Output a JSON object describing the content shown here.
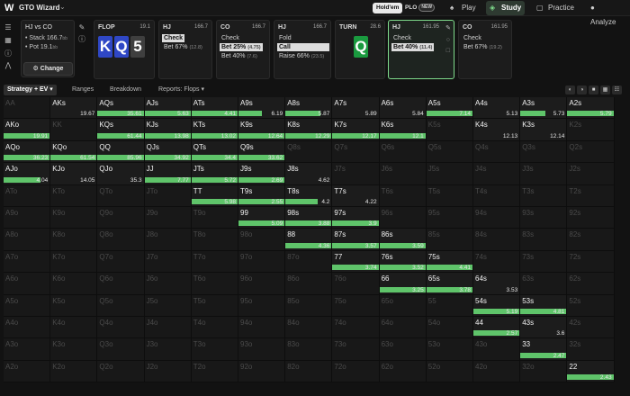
{
  "header": {
    "logo": "W",
    "app_title": "GTO Wizard",
    "game_holdem": "Hold'em",
    "game_plo": "PLO",
    "new_badge": "NEW",
    "nav": [
      {
        "label": "Play",
        "icon": "play-icon"
      },
      {
        "label": "Study",
        "icon": "study-icon"
      },
      {
        "label": "Practice",
        "icon": "gamepad-icon"
      },
      {
        "label": "Analyze",
        "icon": "analyze-icon"
      }
    ]
  },
  "spot": {
    "matchup": "HJ vs CO",
    "stack_label": "Stack 166.7",
    "pot_label": "Pot 19.1",
    "unit": "bb",
    "change_label": "Change"
  },
  "streets": [
    {
      "key": "flop",
      "header": "FLOP",
      "value": "19.1",
      "cards": [
        "K",
        "Q",
        "5"
      ]
    },
    {
      "key": "hj1",
      "header": "HJ",
      "value": "166.7",
      "actions": [
        {
          "label": "Check",
          "sub": "",
          "selected": true
        },
        {
          "label": "Bet 67%",
          "sub": "(12.8)",
          "selected": false
        }
      ]
    },
    {
      "key": "co1",
      "header": "CO",
      "value": "166.7",
      "actions": [
        {
          "label": "Check",
          "sub": "",
          "selected": false
        },
        {
          "label": "Bet 25%",
          "sub": "(4.75)",
          "selected": true
        },
        {
          "label": "Bet 40%",
          "sub": "(7.6)",
          "selected": false
        }
      ]
    },
    {
      "key": "hj2",
      "header": "HJ",
      "value": "166.7",
      "actions": [
        {
          "label": "Fold",
          "sub": "",
          "selected": false
        },
        {
          "label": "Call",
          "sub": "",
          "selected": true
        },
        {
          "label": "Raise 66%",
          "sub": "(23.5)",
          "selected": false
        }
      ]
    },
    {
      "key": "turn",
      "header": "TURN",
      "value": "28.6",
      "cards": [
        "Q"
      ]
    },
    {
      "key": "hj3",
      "header": "HJ",
      "value": "161.95",
      "actions": [
        {
          "label": "Check",
          "sub": "",
          "selected": false
        },
        {
          "label": "Bet 40%",
          "sub": "(11.4)",
          "selected": true
        }
      ]
    },
    {
      "key": "co2",
      "header": "CO",
      "value": "161.95",
      "actions": [
        {
          "label": "Check",
          "sub": "",
          "selected": false
        },
        {
          "label": "Bet 67%",
          "sub": "(19.2)",
          "selected": false
        }
      ]
    }
  ],
  "toolbar": {
    "strategy_tab": "Strategy + EV",
    "ranges_tab": "Ranges",
    "breakdown_tab": "Breakdown",
    "reports_tab": "Reports: Flops"
  },
  "colors": {
    "bar": "#5fc46a",
    "active_border": "#7fdc8c",
    "card_blue": "#2f47c5",
    "card_green": "#1a9a3f"
  },
  "grid": {
    "ranks": [
      "A",
      "K",
      "Q",
      "J",
      "T",
      "9",
      "8",
      "7",
      "6",
      "5",
      "4",
      "3",
      "2"
    ],
    "cells": [
      [
        {
          "h": "AA"
        },
        {
          "h": "AKs",
          "ev": "19.67",
          "f": 0
        },
        {
          "h": "AQs",
          "ev": "35.61",
          "f": 1
        },
        {
          "h": "AJs",
          "ev": "5.63",
          "f": 1
        },
        {
          "h": "ATs",
          "ev": "4.41",
          "f": 1
        },
        {
          "h": "A9s",
          "ev": "6.19",
          "f": 0.5
        },
        {
          "h": "A8s",
          "ev": "5.87",
          "f": 0.75
        },
        {
          "h": "A7s",
          "ev": "5.89",
          "f": 0
        },
        {
          "h": "A6s",
          "ev": "5.84",
          "f": 0
        },
        {
          "h": "A5s",
          "ev": "7.14",
          "f": 1
        },
        {
          "h": "A4s",
          "ev": "5.13",
          "f": 0
        },
        {
          "h": "A3s",
          "ev": "5.73",
          "f": 0.55
        },
        {
          "h": "A2s",
          "ev": "5.79",
          "f": 1
        }
      ],
      [
        {
          "h": "AKo",
          "ev": "19.91",
          "f": 1
        },
        {
          "h": "KK"
        },
        {
          "h": "KQs",
          "ev": "61.44",
          "f": 1
        },
        {
          "h": "KJs",
          "ev": "13.98",
          "f": 1
        },
        {
          "h": "KTs",
          "ev": "13.02",
          "f": 1
        },
        {
          "h": "K9s",
          "ev": "12.64",
          "f": 1
        },
        {
          "h": "K8s",
          "ev": "12.29",
          "f": 1
        },
        {
          "h": "K7s",
          "ev": "12.17",
          "f": 1
        },
        {
          "h": "K6s",
          "ev": "12.1",
          "f": 1
        },
        {
          "h": "K5s"
        },
        {
          "h": "K4s",
          "ev": "12.13",
          "f": 0
        },
        {
          "h": "K3s",
          "ev": "12.14",
          "f": 0
        },
        {
          "h": "K2s"
        }
      ],
      [
        {
          "h": "AQo",
          "ev": "36.23",
          "f": 1
        },
        {
          "h": "KQo",
          "ev": "61.54",
          "f": 1
        },
        {
          "h": "QQ",
          "ev": "85.96",
          "f": 1
        },
        {
          "h": "QJs",
          "ev": "34.92",
          "f": 1
        },
        {
          "h": "QTs",
          "ev": "34.4",
          "f": 1
        },
        {
          "h": "Q9s",
          "ev": "33.62",
          "f": 1
        },
        {
          "h": "Q8s"
        },
        {
          "h": "Q7s"
        },
        {
          "h": "Q6s"
        },
        {
          "h": "Q5s"
        },
        {
          "h": "Q4s"
        },
        {
          "h": "Q3s"
        },
        {
          "h": "Q2s"
        }
      ],
      [
        {
          "h": "AJo",
          "ev": "4.04",
          "f": 0.8
        },
        {
          "h": "KJo",
          "ev": "14.05",
          "f": 0
        },
        {
          "h": "QJo",
          "ev": "35.3",
          "f": 0
        },
        {
          "h": "JJ",
          "ev": "7.77",
          "f": 1
        },
        {
          "h": "JTs",
          "ev": "5.72",
          "f": 1
        },
        {
          "h": "J9s",
          "ev": "2.69",
          "f": 1
        },
        {
          "h": "J8s",
          "ev": "4.62",
          "f": 0
        },
        {
          "h": "J7s"
        },
        {
          "h": "J6s"
        },
        {
          "h": "J5s"
        },
        {
          "h": "J4s"
        },
        {
          "h": "J3s"
        },
        {
          "h": "J2s"
        }
      ],
      [
        {
          "h": "ATo"
        },
        {
          "h": "KTo"
        },
        {
          "h": "QTo"
        },
        {
          "h": "JTo"
        },
        {
          "h": "TT",
          "ev": "5.98",
          "f": 1
        },
        {
          "h": "T9s",
          "ev": "2.55",
          "f": 1
        },
        {
          "h": "T8s",
          "ev": "4.2",
          "f": 0.7
        },
        {
          "h": "T7s",
          "ev": "4.22",
          "f": 0
        },
        {
          "h": "T6s"
        },
        {
          "h": "T5s"
        },
        {
          "h": "T4s"
        },
        {
          "h": "T3s"
        },
        {
          "h": "T2s"
        }
      ],
      [
        {
          "h": "A9o"
        },
        {
          "h": "K9o"
        },
        {
          "h": "Q9o"
        },
        {
          "h": "J9o"
        },
        {
          "h": "T9o"
        },
        {
          "h": "99",
          "ev": "5.09",
          "f": 1
        },
        {
          "h": "98s",
          "ev": "3.88",
          "f": 1
        },
        {
          "h": "97s",
          "ev": "3.9",
          "f": 1
        },
        {
          "h": "96s"
        },
        {
          "h": "95s"
        },
        {
          "h": "94s"
        },
        {
          "h": "93s"
        },
        {
          "h": "92s"
        }
      ],
      [
        {
          "h": "A8o"
        },
        {
          "h": "K8o"
        },
        {
          "h": "Q8o"
        },
        {
          "h": "J8o"
        },
        {
          "h": "T8o"
        },
        {
          "h": "98o"
        },
        {
          "h": "88",
          "ev": "4.36",
          "f": 1
        },
        {
          "h": "87s",
          "ev": "3.57",
          "f": 1
        },
        {
          "h": "86s",
          "ev": "3.59",
          "f": 1
        },
        {
          "h": "85s"
        },
        {
          "h": "84s"
        },
        {
          "h": "83s"
        },
        {
          "h": "82s"
        }
      ],
      [
        {
          "h": "A7o"
        },
        {
          "h": "K7o"
        },
        {
          "h": "Q7o"
        },
        {
          "h": "J7o"
        },
        {
          "h": "T7o"
        },
        {
          "h": "97o"
        },
        {
          "h": "87o"
        },
        {
          "h": "77",
          "ev": "3.74",
          "f": 1
        },
        {
          "h": "76s",
          "ev": "3.52",
          "f": 1
        },
        {
          "h": "75s",
          "ev": "4.41",
          "f": 1
        },
        {
          "h": "74s"
        },
        {
          "h": "73s"
        },
        {
          "h": "72s"
        }
      ],
      [
        {
          "h": "A6o"
        },
        {
          "h": "K6o"
        },
        {
          "h": "Q6o"
        },
        {
          "h": "J6o"
        },
        {
          "h": "T6o"
        },
        {
          "h": "96o"
        },
        {
          "h": "86o"
        },
        {
          "h": "76o"
        },
        {
          "h": "66",
          "ev": "3.25",
          "f": 1
        },
        {
          "h": "65s",
          "ev": "3.78",
          "f": 1
        },
        {
          "h": "64s",
          "ev": "3.53",
          "f": 0
        },
        {
          "h": "63s"
        },
        {
          "h": "62s"
        }
      ],
      [
        {
          "h": "A5o"
        },
        {
          "h": "K5o"
        },
        {
          "h": "Q5o"
        },
        {
          "h": "J5o"
        },
        {
          "h": "T5o"
        },
        {
          "h": "95o"
        },
        {
          "h": "85o"
        },
        {
          "h": "75o"
        },
        {
          "h": "65o"
        },
        {
          "h": "55"
        },
        {
          "h": "54s",
          "ev": "5.19",
          "f": 1
        },
        {
          "h": "53s",
          "ev": "4.81",
          "f": 1
        },
        {
          "h": "52s"
        }
      ],
      [
        {
          "h": "A4o"
        },
        {
          "h": "K4o"
        },
        {
          "h": "Q4o"
        },
        {
          "h": "J4o"
        },
        {
          "h": "T4o"
        },
        {
          "h": "94o"
        },
        {
          "h": "84o"
        },
        {
          "h": "74o"
        },
        {
          "h": "64o"
        },
        {
          "h": "54o"
        },
        {
          "h": "44",
          "ev": "2.57",
          "f": 1
        },
        {
          "h": "43s",
          "ev": "3.6",
          "f": 0
        },
        {
          "h": "42s"
        }
      ],
      [
        {
          "h": "A3o"
        },
        {
          "h": "K3o"
        },
        {
          "h": "Q3o"
        },
        {
          "h": "J3o"
        },
        {
          "h": "T3o"
        },
        {
          "h": "93o"
        },
        {
          "h": "83o"
        },
        {
          "h": "73o"
        },
        {
          "h": "63o"
        },
        {
          "h": "53o"
        },
        {
          "h": "43o"
        },
        {
          "h": "33",
          "ev": "2.47",
          "f": 1
        },
        {
          "h": "32s"
        }
      ],
      [
        {
          "h": "A2o"
        },
        {
          "h": "K2o"
        },
        {
          "h": "Q2o"
        },
        {
          "h": "J2o"
        },
        {
          "h": "T2o"
        },
        {
          "h": "92o"
        },
        {
          "h": "82o"
        },
        {
          "h": "72o"
        },
        {
          "h": "62o"
        },
        {
          "h": "52o"
        },
        {
          "h": "42o"
        },
        {
          "h": "32o"
        },
        {
          "h": "22",
          "ev": "2.43",
          "f": 1
        }
      ]
    ]
  }
}
